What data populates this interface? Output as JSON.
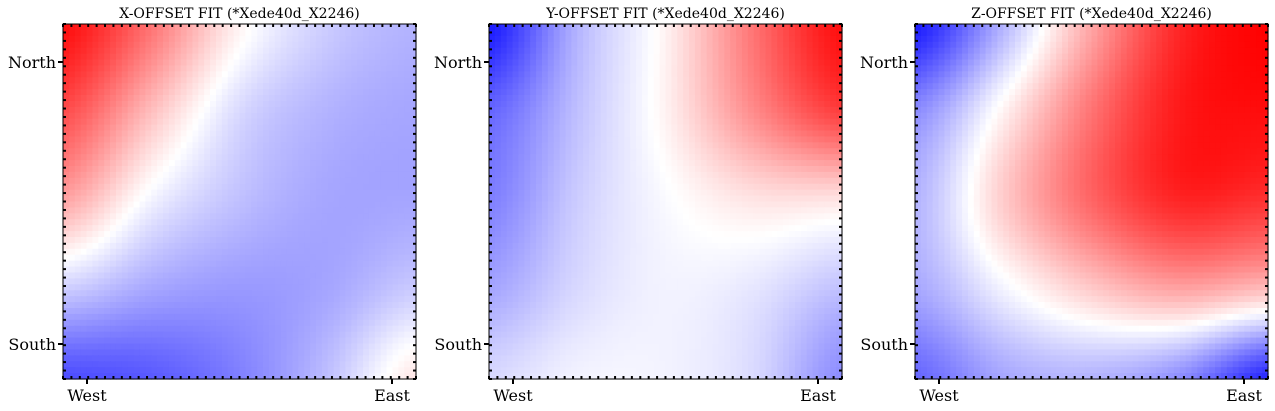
{
  "chart_data": [
    {
      "type": "heatmap",
      "title": "X-OFFSET FIT (*Xede40d_X2246)",
      "x_tick_labels": [
        "West",
        "East"
      ],
      "y_tick_labels": [
        "North",
        "South"
      ],
      "colormap": "bwr",
      "colors": {
        "low": "#0000ff",
        "mid": "#ffffff",
        "high": "#ff0000"
      },
      "grid": false,
      "value_grid_description": "values by row north to south, column west to east, scale -1 (blue) to 1 (red)",
      "grid_values": [
        [
          0.95,
          0.55,
          0.05,
          -0.2,
          -0.3
        ],
        [
          0.7,
          0.25,
          -0.15,
          -0.3,
          -0.35
        ],
        [
          0.35,
          -0.05,
          -0.25,
          -0.35,
          -0.35
        ],
        [
          -0.2,
          -0.35,
          -0.4,
          -0.35,
          -0.2
        ],
        [
          -0.7,
          -0.65,
          -0.5,
          -0.25,
          0.1
        ]
      ]
    },
    {
      "type": "heatmap",
      "title": "Y-OFFSET FIT (*Xede40d_X2246)",
      "x_tick_labels": [
        "West",
        "East"
      ],
      "y_tick_labels": [
        "North",
        "South"
      ],
      "colormap": "bwr",
      "colors": {
        "low": "#0000ff",
        "mid": "#ffffff",
        "high": "#ff0000"
      },
      "grid": false,
      "grid_values": [
        [
          -0.9,
          -0.3,
          0.05,
          0.55,
          0.95
        ],
        [
          -0.6,
          -0.25,
          0.05,
          0.45,
          0.75
        ],
        [
          -0.5,
          -0.2,
          -0.02,
          0.1,
          0.1
        ],
        [
          -0.35,
          -0.15,
          -0.05,
          -0.1,
          -0.25
        ],
        [
          -0.15,
          -0.05,
          -0.05,
          -0.15,
          -0.45
        ]
      ]
    },
    {
      "type": "heatmap",
      "title": "Z-OFFSET FIT (*Xede40d_X2246)",
      "x_tick_labels": [
        "West",
        "East"
      ],
      "y_tick_labels": [
        "North",
        "South"
      ],
      "colormap": "bwr",
      "colors": {
        "low": "#0000ff",
        "mid": "#ffffff",
        "high": "#ff0000"
      },
      "grid": false,
      "grid_values": [
        [
          -0.9,
          -0.3,
          0.35,
          0.85,
          1.0
        ],
        [
          -0.45,
          0.05,
          0.55,
          0.9,
          0.95
        ],
        [
          -0.3,
          0.2,
          0.6,
          0.85,
          0.8
        ],
        [
          -0.35,
          -0.05,
          0.2,
          0.35,
          0.25
        ],
        [
          -0.6,
          -0.35,
          -0.3,
          -0.45,
          -0.85
        ]
      ]
    }
  ]
}
